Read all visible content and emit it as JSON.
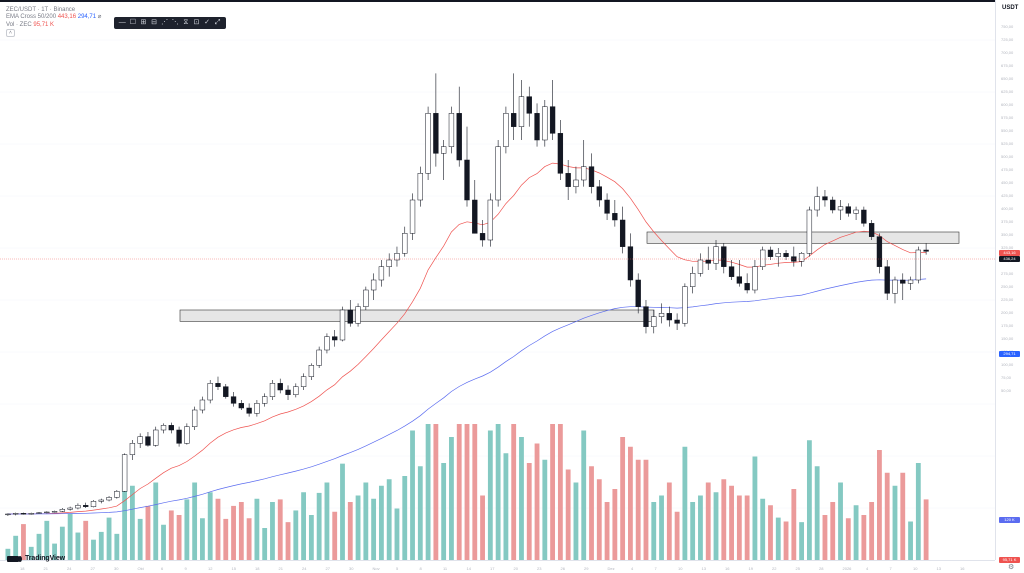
{
  "legend": {
    "symbol": "ZEC/USDT · 1T · Binance",
    "ema_label": "EMA Cross 50/200",
    "ema_fast_value": "443,16",
    "ema_slow_value": "294,71",
    "vol_label": "Vol · ZEC",
    "vol_value": "95,71 K"
  },
  "price_axis": {
    "currency": "USDT",
    "ticks": [
      "750,00",
      "725,00",
      "700,00",
      "675,00",
      "650,00",
      "625,00",
      "600,00",
      "575,00",
      "550,00",
      "525,00",
      "500,00",
      "475,00",
      "450,00",
      "425,00",
      "400,00",
      "375,00",
      "350,00",
      "325,00",
      "300,00",
      "275,00",
      "250,00",
      "225,00",
      "200,00",
      "175,00",
      "150,00",
      "125,00",
      "100,00",
      "75,00",
      "50,00"
    ],
    "last_price_tag": "436,24",
    "ema_fast_tag": "443,16",
    "ema_slow_tag": "294,71",
    "volume_tag": "95,71 K",
    "volume_tag2": "120 K"
  },
  "time_axis": {
    "ticks": [
      "18",
      "21",
      "24",
      "27",
      "30",
      "Okt",
      "6",
      "9",
      "12",
      "15",
      "18",
      "21",
      "24",
      "27",
      "30",
      "Nov",
      "5",
      "8",
      "11",
      "14",
      "17",
      "20",
      "23",
      "26",
      "29",
      "Dez",
      "4",
      "7",
      "10",
      "13",
      "16",
      "19",
      "22",
      "25",
      "28",
      "2026",
      "4",
      "7",
      "10",
      "13",
      "16"
    ]
  },
  "toolbar": {
    "items": [
      "—",
      "☐",
      "⊞",
      "⊟",
      "⋰",
      "⋱",
      "⧖",
      "⊡",
      "✓",
      "⤢"
    ]
  },
  "branding": {
    "name": "TradingView"
  },
  "colors": {
    "up": "#ffffff",
    "down": "#131722",
    "ema_fast": "#ef5350",
    "ema_slow": "#5b6cf0",
    "vol_up": "#84c9c2",
    "vol_down": "#eb9a9a",
    "zone": "#e6e6e6"
  },
  "chart_data": {
    "type": "candlestick",
    "price_scale": [
      0,
      750
    ],
    "candles": [
      [
        38,
        40,
        36,
        39
      ],
      [
        39,
        41,
        37,
        40
      ],
      [
        40,
        41,
        38,
        39
      ],
      [
        39,
        41,
        38,
        40
      ],
      [
        40,
        42,
        39,
        41
      ],
      [
        41,
        43,
        40,
        42
      ],
      [
        42,
        44,
        41,
        43
      ],
      [
        43,
        48,
        42,
        46
      ],
      [
        46,
        50,
        44,
        48
      ],
      [
        48,
        55,
        46,
        52
      ],
      [
        52,
        56,
        48,
        50
      ],
      [
        50,
        60,
        49,
        58
      ],
      [
        58,
        62,
        55,
        60
      ],
      [
        60,
        66,
        58,
        64
      ],
      [
        64,
        75,
        62,
        73
      ],
      [
        73,
        130,
        72,
        128
      ],
      [
        128,
        150,
        120,
        145
      ],
      [
        145,
        160,
        138,
        155
      ],
      [
        155,
        162,
        140,
        142
      ],
      [
        142,
        170,
        140,
        165
      ],
      [
        165,
        175,
        160,
        172
      ],
      [
        172,
        176,
        160,
        165
      ],
      [
        165,
        170,
        140,
        145
      ],
      [
        145,
        175,
        143,
        170
      ],
      [
        170,
        200,
        165,
        195
      ],
      [
        195,
        215,
        190,
        210
      ],
      [
        210,
        240,
        205,
        235
      ],
      [
        235,
        245,
        225,
        230
      ],
      [
        230,
        234,
        212,
        215
      ],
      [
        215,
        222,
        200,
        205
      ],
      [
        205,
        210,
        195,
        198
      ],
      [
        198,
        205,
        185,
        190
      ],
      [
        190,
        210,
        185,
        205
      ],
      [
        205,
        220,
        200,
        215
      ],
      [
        215,
        240,
        210,
        235
      ],
      [
        235,
        242,
        220,
        225
      ],
      [
        225,
        232,
        210,
        218
      ],
      [
        218,
        235,
        214,
        230
      ],
      [
        230,
        250,
        225,
        245
      ],
      [
        245,
        265,
        240,
        262
      ],
      [
        262,
        290,
        258,
        285
      ],
      [
        285,
        310,
        280,
        305
      ],
      [
        305,
        315,
        290,
        300
      ],
      [
        300,
        350,
        298,
        345
      ],
      [
        345,
        360,
        320,
        325
      ],
      [
        325,
        355,
        320,
        350
      ],
      [
        350,
        380,
        345,
        375
      ],
      [
        375,
        400,
        360,
        390
      ],
      [
        390,
        420,
        380,
        410
      ],
      [
        410,
        430,
        395,
        420
      ],
      [
        420,
        440,
        410,
        430
      ],
      [
        430,
        470,
        425,
        460
      ],
      [
        460,
        520,
        450,
        510
      ],
      [
        510,
        560,
        500,
        550
      ],
      [
        550,
        650,
        540,
        640
      ],
      [
        640,
        700,
        560,
        580
      ],
      [
        580,
        600,
        540,
        590
      ],
      [
        590,
        650,
        580,
        640
      ],
      [
        640,
        680,
        560,
        570
      ],
      [
        570,
        620,
        500,
        510
      ],
      [
        510,
        540,
        460,
        460
      ],
      [
        460,
        480,
        440,
        450
      ],
      [
        450,
        520,
        440,
        510
      ],
      [
        510,
        600,
        500,
        590
      ],
      [
        590,
        650,
        580,
        640
      ],
      [
        640,
        700,
        600,
        620
      ],
      [
        620,
        690,
        600,
        665
      ],
      [
        665,
        680,
        620,
        640
      ],
      [
        640,
        655,
        590,
        600
      ],
      [
        600,
        660,
        590,
        650
      ],
      [
        650,
        690,
        600,
        610
      ],
      [
        610,
        630,
        540,
        550
      ],
      [
        550,
        570,
        510,
        530
      ],
      [
        530,
        560,
        520,
        540
      ],
      [
        540,
        600,
        530,
        560
      ],
      [
        560,
        580,
        520,
        530
      ],
      [
        530,
        540,
        500,
        510
      ],
      [
        510,
        520,
        480,
        490
      ],
      [
        490,
        510,
        470,
        480
      ],
      [
        480,
        500,
        430,
        440
      ],
      [
        440,
        460,
        380,
        390
      ],
      [
        390,
        400,
        340,
        350
      ],
      [
        350,
        360,
        310,
        320
      ],
      [
        320,
        345,
        310,
        335
      ],
      [
        335,
        355,
        325,
        340
      ],
      [
        340,
        350,
        320,
        330
      ],
      [
        330,
        340,
        315,
        325
      ],
      [
        325,
        385,
        320,
        380
      ],
      [
        380,
        410,
        370,
        400
      ],
      [
        400,
        430,
        395,
        420
      ],
      [
        420,
        440,
        405,
        415
      ],
      [
        415,
        450,
        405,
        440
      ],
      [
        440,
        445,
        400,
        410
      ],
      [
        410,
        420,
        390,
        395
      ],
      [
        395,
        420,
        380,
        385
      ],
      [
        385,
        400,
        370,
        375
      ],
      [
        375,
        420,
        370,
        410
      ],
      [
        410,
        440,
        405,
        435
      ],
      [
        435,
        440,
        420,
        425
      ],
      [
        425,
        438,
        410,
        430
      ],
      [
        430,
        435,
        420,
        425
      ],
      [
        425,
        440,
        410,
        418
      ],
      [
        418,
        432,
        410,
        430
      ],
      [
        430,
        500,
        425,
        495
      ],
      [
        495,
        530,
        485,
        515
      ],
      [
        515,
        525,
        500,
        510
      ],
      [
        510,
        515,
        490,
        495
      ],
      [
        495,
        510,
        480,
        500
      ],
      [
        500,
        505,
        485,
        490
      ],
      [
        490,
        500,
        480,
        495
      ],
      [
        495,
        500,
        470,
        475
      ],
      [
        475,
        480,
        450,
        455
      ],
      [
        455,
        460,
        400,
        410
      ],
      [
        410,
        420,
        360,
        370
      ],
      [
        370,
        395,
        355,
        390
      ],
      [
        390,
        400,
        360,
        385
      ],
      [
        385,
        395,
        375,
        390
      ],
      [
        390,
        440,
        385,
        435
      ],
      [
        435,
        445,
        428,
        433
      ]
    ],
    "zones": [
      {
        "from": 328,
        "to": 345,
        "label": ""
      },
      {
        "from": 445,
        "to": 462,
        "label": ""
      }
    ],
    "ema_fast_last": 443.16,
    "ema_slow_last": 294.71,
    "volume_max": 180
  }
}
